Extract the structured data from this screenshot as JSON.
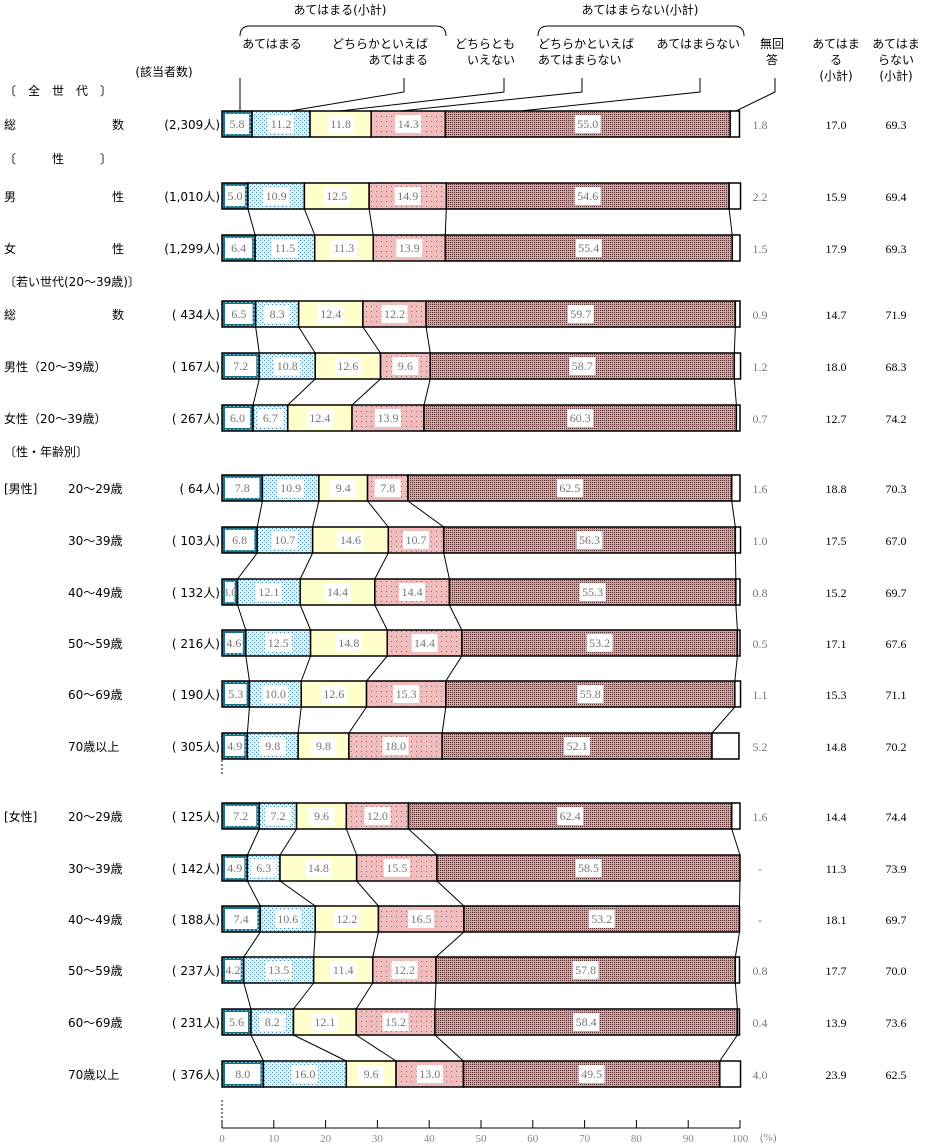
{
  "chart_data": {
    "type": "bar",
    "orientation": "horizontal-stacked-100",
    "header": {
      "group_yes": "あてはまる(小計)",
      "group_no": "あてはまらない(小計)",
      "n_header": "(該当者数)",
      "categories": [
        "あてはまる",
        "どちらかといえば\nあてはまる",
        "どちらとも\nいえない",
        "どちらかといえば\nあてはまらない",
        "あてはまらない",
        "無回\n答"
      ],
      "col_yes": "あてはま\nる\n(小計)",
      "col_no": "あてはま\nらない\n(小計)"
    },
    "section_labels": {
      "all": "〔　全　世　代　〕",
      "sex": "〔　　　性　　　〕",
      "young": "〔若い世代(20～39歳)〕",
      "sexage": "〔性・年齢別〕",
      "male": "[男性]",
      "female": "[女性]"
    },
    "colors": [
      "#2a7d96",
      "#bfe3f2",
      "#ffffcc",
      "#f0b8b8",
      "#b86e6e",
      "#ffffff"
    ],
    "xlim": [
      0,
      100
    ],
    "x_ticks": [
      "0",
      "10",
      "20",
      "30",
      "40",
      "50",
      "60",
      "70",
      "80",
      "90",
      "100"
    ],
    "x_unit": "(%)",
    "rows": [
      {
        "group": "all",
        "label": [
          "総",
          "数"
        ],
        "n": "(2,309人)",
        "values": [
          5.8,
          11.2,
          11.8,
          14.3,
          55.0,
          1.8
        ],
        "na": "1.8",
        "yes": "17.0",
        "no": "69.3"
      },
      {
        "group": "sex",
        "label": [
          "男",
          "性"
        ],
        "n": "(1,010人)",
        "values": [
          5.0,
          10.9,
          12.5,
          14.9,
          54.6,
          2.2
        ],
        "na": "2.2",
        "yes": "15.9",
        "no": "69.4"
      },
      {
        "group": "sex",
        "label": [
          "女",
          "性"
        ],
        "n": "(1,299人)",
        "values": [
          6.4,
          11.5,
          11.3,
          13.9,
          55.4,
          1.5
        ],
        "na": "1.5",
        "yes": "17.9",
        "no": "69.3"
      },
      {
        "group": "young",
        "label": [
          "総",
          "数"
        ],
        "n": "( 434人)",
        "values": [
          6.5,
          8.3,
          12.4,
          12.2,
          59.7,
          0.9
        ],
        "na": "0.9",
        "yes": "14.7",
        "no": "71.9"
      },
      {
        "group": "young",
        "label": [
          "男性（20～39歳）"
        ],
        "n": "( 167人)",
        "values": [
          7.2,
          10.8,
          12.6,
          9.6,
          58.7,
          1.2
        ],
        "na": "1.2",
        "yes": "18.0",
        "no": "68.3"
      },
      {
        "group": "young",
        "label": [
          "女性（20～39歳）"
        ],
        "n": "( 267人)",
        "values": [
          6.0,
          6.7,
          12.4,
          13.9,
          60.3,
          0.7
        ],
        "na": "0.7",
        "yes": "12.7",
        "no": "74.2"
      },
      {
        "group": "male",
        "label": [
          "20～29歳"
        ],
        "n": "(  64人)",
        "values": [
          7.8,
          10.9,
          9.4,
          7.8,
          62.5,
          1.6
        ],
        "na": "1.6",
        "yes": "18.8",
        "no": "70.3"
      },
      {
        "group": "male",
        "label": [
          "30～39歳"
        ],
        "n": "( 103人)",
        "values": [
          6.8,
          10.7,
          14.6,
          10.7,
          56.3,
          1.0
        ],
        "na": "1.0",
        "yes": "17.5",
        "no": "67.0"
      },
      {
        "group": "male",
        "label": [
          "40～49歳"
        ],
        "n": "( 132人)",
        "values": [
          3.0,
          12.1,
          14.4,
          14.4,
          55.3,
          0.8
        ],
        "na": "0.8",
        "yes": "15.2",
        "no": "69.7"
      },
      {
        "group": "male",
        "label": [
          "50～59歳"
        ],
        "n": "( 216人)",
        "values": [
          4.6,
          12.5,
          14.8,
          14.4,
          53.2,
          0.5
        ],
        "na": "0.5",
        "yes": "17.1",
        "no": "67.6"
      },
      {
        "group": "male",
        "label": [
          "60～69歳"
        ],
        "n": "( 190人)",
        "values": [
          5.3,
          10.0,
          12.6,
          15.3,
          55.8,
          1.1
        ],
        "na": "1.1",
        "yes": "15.3",
        "no": "71.1"
      },
      {
        "group": "male",
        "label": [
          "70歳以上"
        ],
        "n": "( 305人)",
        "values": [
          4.9,
          9.8,
          9.8,
          18.0,
          52.1,
          5.2
        ],
        "na": "5.2",
        "yes": "14.8",
        "no": "70.2"
      },
      {
        "group": "female",
        "label": [
          "20～29歳"
        ],
        "n": "( 125人)",
        "values": [
          7.2,
          7.2,
          9.6,
          12.0,
          62.4,
          1.6
        ],
        "na": "1.6",
        "yes": "14.4",
        "no": "74.4"
      },
      {
        "group": "female",
        "label": [
          "30～39歳"
        ],
        "n": "( 142人)",
        "values": [
          4.9,
          6.3,
          14.8,
          15.5,
          58.5,
          0
        ],
        "na": "-",
        "yes": "11.3",
        "no": "73.9"
      },
      {
        "group": "female",
        "label": [
          "40～49歳"
        ],
        "n": "( 188人)",
        "values": [
          7.4,
          10.6,
          12.2,
          16.5,
          53.2,
          0
        ],
        "na": "-",
        "yes": "18.1",
        "no": "69.7"
      },
      {
        "group": "female",
        "label": [
          "50～59歳"
        ],
        "n": "( 237人)",
        "values": [
          4.2,
          13.5,
          11.4,
          12.2,
          57.8,
          0.8
        ],
        "na": "0.8",
        "yes": "17.7",
        "no": "70.0"
      },
      {
        "group": "female",
        "label": [
          "60～69歳"
        ],
        "n": "( 231人)",
        "values": [
          5.6,
          8.2,
          12.1,
          15.2,
          58.4,
          0.4
        ],
        "na": "0.4",
        "yes": "13.9",
        "no": "73.6"
      },
      {
        "group": "female",
        "label": [
          "70歳以上"
        ],
        "n": "( 376人)",
        "values": [
          8.0,
          16.0,
          9.6,
          13.0,
          49.5,
          4.0
        ],
        "na": "4.0",
        "yes": "23.9",
        "no": "62.5"
      }
    ]
  }
}
